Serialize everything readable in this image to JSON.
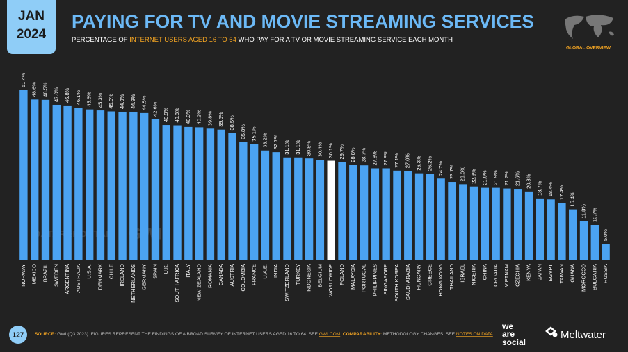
{
  "badge": {
    "month": "JAN",
    "year": "2024"
  },
  "header": {
    "title": "PAYING FOR TV AND MOVIE STREAMING SERVICES",
    "subtitle": [
      "PERCENTAGE OF ",
      "INTERNET USERS AGED 16 TO 64",
      " WHO PAY FOR A TV OR MOVIE STREAMING SERVICE EACH MONTH"
    ],
    "section": "GLOBAL OVERVIEW"
  },
  "chart_data": {
    "type": "bar",
    "categories": [
      "NORWAY",
      "MEXICO",
      "BRAZIL",
      "SWEDEN",
      "ARGENTINA",
      "AUSTRALIA",
      "U.S.A.",
      "DENMARK",
      "CHILE",
      "IRELAND",
      "NETHERLANDS",
      "GERMANY",
      "SPAIN",
      "U.K.",
      "SOUTH AFRICA",
      "ITALY",
      "NEW ZEALAND",
      "ROMANIA",
      "CANADA",
      "AUSTRIA",
      "COLOMBIA",
      "FRANCE",
      "U.A.E.",
      "INDIA",
      "SWITZERLAND",
      "TURKEY",
      "INDONESIA",
      "BELGIUM",
      "WORLDWIDE",
      "POLAND",
      "MALAYSIA",
      "PORTUGAL",
      "PHILIPPINES",
      "SINGAPORE",
      "SOUTH KOREA",
      "SAUDI ARABIA",
      "HUNGARY",
      "GREECE",
      "HONG KONG",
      "THAILAND",
      "ISRAEL",
      "NIGERIA",
      "CHINA",
      "CROATIA",
      "VIETNAM",
      "CZECHIA",
      "KENYA",
      "JAPAN",
      "EGYPT",
      "TAIWAN",
      "GHANA",
      "MOROCCO",
      "BULGARIA",
      "RUSSIA"
    ],
    "values": [
      51.4,
      48.6,
      48.5,
      47.0,
      46.8,
      46.1,
      45.6,
      45.3,
      45.0,
      44.9,
      44.9,
      44.5,
      42.6,
      40.9,
      40.8,
      40.3,
      40.2,
      39.8,
      39.5,
      38.5,
      35.8,
      35.1,
      33.2,
      32.7,
      31.1,
      31.1,
      30.8,
      30.4,
      30.1,
      29.7,
      28.8,
      28.7,
      27.8,
      27.8,
      27.1,
      27.0,
      26.3,
      26.2,
      24.7,
      23.7,
      23.0,
      22.3,
      21.9,
      21.9,
      21.7,
      21.6,
      20.8,
      18.7,
      18.4,
      17.4,
      15.4,
      11.8,
      10.7,
      5.0
    ],
    "value_labels": [
      "51.4%",
      "48.6%",
      "48.5%",
      "47.0%",
      "46.8%",
      "46.1%",
      "45.6%",
      "45.3%",
      "45.0%",
      "44.9%",
      "44.9%",
      "44.5%",
      "42.6%",
      "40.9%",
      "40.8%",
      "40.3%",
      "40.2%",
      "39.8%",
      "39.5%",
      "38.5%",
      "35.8%",
      "35.1%",
      "33.2%",
      "32.7%",
      "31.1%",
      "31.1%",
      "30.8%",
      "30.4%",
      "30.1%",
      "29.7%",
      "28.8%",
      "28.7%",
      "27.8%",
      "27.8%",
      "27.1%",
      "27.0%",
      "26.3%",
      "26.2%",
      "24.7%",
      "23.7%",
      "23.0%",
      "22.3%",
      "21.9%",
      "21.9%",
      "21.7%",
      "21.6%",
      "20.8%",
      "18.7%",
      "18.4%",
      "17.4%",
      "15.4%",
      "11.8%",
      "10.7%",
      "5.0%"
    ],
    "colors": [
      "#4ba3f2",
      "#4ba3f2",
      "#4ba3f2",
      "#4ba3f2",
      "#4ba3f2",
      "#4ba3f2",
      "#4ba3f2",
      "#4ba3f2",
      "#4ba3f2",
      "#4ba3f2",
      "#4ba3f2",
      "#4ba3f2",
      "#4ba3f2",
      "#4ba3f2",
      "#4ba3f2",
      "#4ba3f2",
      "#4ba3f2",
      "#4ba3f2",
      "#4ba3f2",
      "#4ba3f2",
      "#4ba3f2",
      "#4ba3f2",
      "#4ba3f2",
      "#4ba3f2",
      "#4ba3f2",
      "#4ba3f2",
      "#4ba3f2",
      "#4ba3f2",
      "#ffffff",
      "#4ba3f2",
      "#4ba3f2",
      "#4ba3f2",
      "#4ba3f2",
      "#4ba3f2",
      "#4ba3f2",
      "#4ba3f2",
      "#4ba3f2",
      "#4ba3f2",
      "#4ba3f2",
      "#4ba3f2",
      "#4ba3f2",
      "#4ba3f2",
      "#4ba3f2",
      "#4ba3f2",
      "#4ba3f2",
      "#4ba3f2",
      "#4ba3f2",
      "#4ba3f2",
      "#4ba3f2",
      "#4ba3f2",
      "#4ba3f2",
      "#4ba3f2",
      "#4ba3f2",
      "#4ba3f2"
    ]
  },
  "watermarks": [
    "DATAREPORTAL",
    "GWI."
  ],
  "footer": {
    "page": "127",
    "source": [
      "SOURCE:",
      " GWI (Q3 2023). FIGURES REPRESENT THE FINDINGS OF A BROAD SURVEY OF INTERNET USERS AGED 16 TO 64. SEE ",
      "GWI.COM",
      ". ",
      "COMPARABILITY:",
      " METHODOLOGY CHANGES. SEE ",
      "NOTES ON DATA",
      "."
    ],
    "logos": [
      "we",
      "are",
      "social",
      "Meltwater"
    ]
  }
}
